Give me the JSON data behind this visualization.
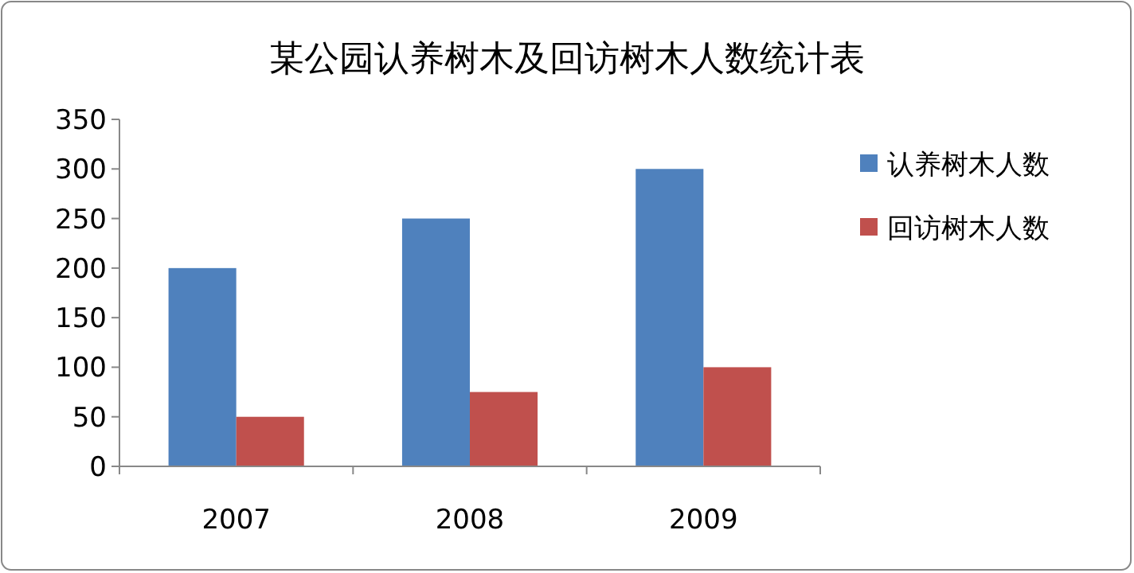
{
  "chart_data": {
    "type": "bar",
    "title": "某公园认养树木及回访树木人数统计表",
    "categories": [
      "2007",
      "2008",
      "2009"
    ],
    "series": [
      {
        "name": "认养树木人数",
        "color": "#4f81bd",
        "values": [
          200,
          250,
          300
        ]
      },
      {
        "name": "回访树木人数",
        "color": "#c0504d",
        "values": [
          50,
          75,
          100
        ]
      }
    ],
    "ylim": [
      0,
      350
    ],
    "yticks": [
      0,
      50,
      100,
      150,
      200,
      250,
      300,
      350
    ],
    "grid": false,
    "legend": "right"
  }
}
